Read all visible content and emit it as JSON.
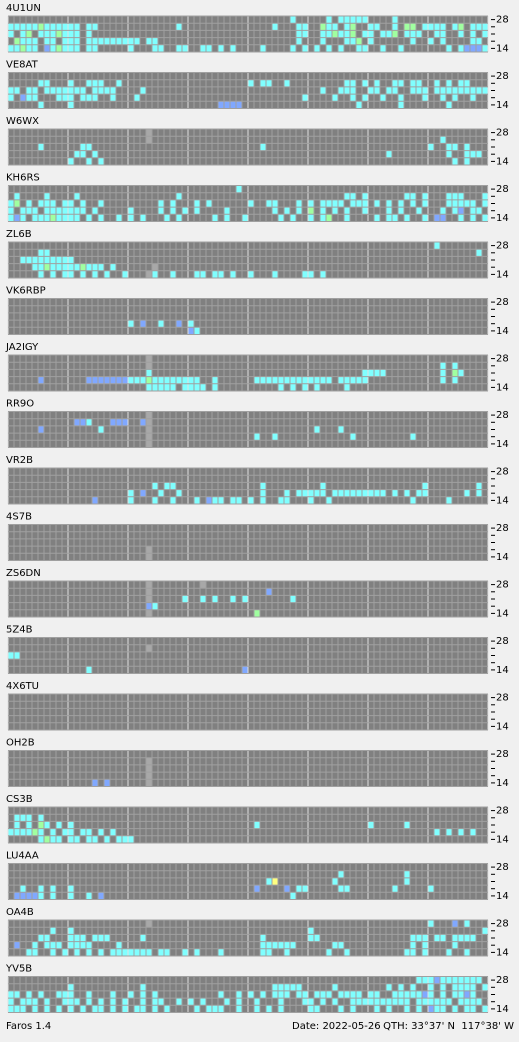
{
  "panels": [
    {
      "station": "4U1UN",
      "rows": [
        "...............................................c.....c.ccccc....c.................",
        "cccccgcccccc.cc.............c...............c...cc..gcc.cg..cc..c.gg.cccc.cg.ccc",
        "c.cg.cccgccc.c..................................cc..ccgccg.cc.ccg.ccc..cc..c.c.c.ccc",
        ".gccc.cc.ccc.ccccccccc.cc.......................c...c...ccg.c......c..c.c....cc..ccc.c",
        "ccgcc.bcgccc.cc.....c...cc..cc..cc.c.c....c....c.c.c.c.c..cc..c..c.......c.cbbbc"
      ]
    },
    {
      "station": "VE8AT",
      "rows": [
        "................................................................................",
        ".....cc...c..ccc..c.....................c.cc..c.........cc.c.c..cc.cc..c.c.cc.",
        "cc.cc.ccccccc.cccc....c.............................c..ccc..cc.cc..ccc.cccccccccc.cc.cc.c",
        "c.bcc...ccc.ccc..c...c...........................c....c..c.c..c..c...c..c.c..c...c..c.",
        ".....c....c........................bbbb...................c......c.......c........."
      ]
    },
    {
      "station": "W6WX",
      "rows": [
        ".......................k........................................................",
        ".......................k................................................c.......",
        ".....c......cc............................c...........................c..cc.c...",
        "...........cc.c................................................c.........c..ccc..",
        "..........c..c.c..........................................................c.c..."
      ]
    },
    {
      "station": "KH6RS",
      "rows": [
        "......................................c.........................................c.......",
        ".c....c....c................c...........................cc.c......cc.c...ccc...ccc...",
        "cg.c.ccc.cc.c..c.........c.c...c.c......c..cc...c.c.cccc.ccc.c.c.c.c.c...ccccc.c",
        "c.ccc.ccccccc.c.....c....c.c.c.c....c.......c.c.c.g.c.c.c..c...c.c..c...c.cb.cc.",
        "cbc.cccgcccc.c.c..c.c.c...c.c.....c.c..c.....c.c..c.cg..c....c.cc.c..c.bb..c.c.c"
      ]
    },
    {
      "station": "ZL6B",
      "rows": [
        ".......................................................................c........",
        ".....cc.......................................................................c.c...c...",
        "..ccccccccc.....................................................................",
        "....ccgcccccgccc.c......k.......................................................",
        ".....c.c.cc.c.c.c..c...kc..c...cc.cc.c..c...c....cc.c..........................."
      ]
    },
    {
      "station": "VK6RBP",
      "rows": [
        "................................................................................",
        "................................................................................",
        "................................................................................",
        "....................c.b..c..b.c.................................................",
        "..............................bc................................................"
      ]
    },
    {
      "station": "JA2IGY",
      "rows": [
        ".......................k........................................................",
        ".......................k................................................c.c.....",
        ".......................c...................................cccc.........c.gc......",
        ".....b.......bbbbbbbcccgcccccccc..c......ccccccccccccc.ccccc............c.c.....",
        ".......................ccccc.cccc.c..........c.c.c.c....c......................."
      ]
    },
    {
      "station": "RR9O",
      "rows": [
        ".......................k........................................................",
        "...........bbc...bbb..bk........................................................",
        ".....b.........c.......k...........................c...c........................",
        ".......................k.................c..c............c.........c............",
        ".......................k........................................................"
      ]
    },
    {
      "station": "VR2B",
      "rows": [
        "................................................................................",
        "................................................................................",
        "........................c.cc..............c.........c................c........c..",
        "....................c.b..c..c.............c...c.ccccc.ccccccccc.c.c.cc......c.c..",
        "..............b.....c...c..c...c.bcc.cc.c.c..cc...c..c.............c.....c......"
      ]
    },
    {
      "station": "4S7B",
      "rows": [
        "................................................................................",
        "................................................................................",
        "................................................................................",
        ".......................k........................................................",
        ".......................k........................................................"
      ]
    },
    {
      "station": "ZS6DN",
      "rows": [
        ".......................k........k...............................................",
        ".......................k...................b....................................",
        ".......................k.....c..c.c..c.c.......c.................................",
        ".......................bc.......................................................",
        ".......................k.................g......................................"
      ]
    },
    {
      "station": "5Z4B",
      "rows": [
        "................................................................................",
        ".......................k........................................................",
        "cc..............................................................................",
        "................................................................................",
        ".............c.........................b........................................"
      ]
    },
    {
      "station": "4X6TU",
      "rows": [
        "................................................................................",
        "................................................................................",
        "................................................................................",
        "................................................................................",
        "................................................................................"
      ]
    },
    {
      "station": "OH2B",
      "rows": [
        "................................................................................",
        ".......................k........................................................",
        ".......................k........................................................",
        ".......................k........................................................",
        "..............b.b......k........................................................"
      ]
    },
    {
      "station": "CS3B",
      "rows": [
        "................................................................................",
        ".ccc.c..........................................................................c......",
        ".c.c.gc.c.c..............................c..................c.....c............",
        "ccccgc.c.cc.cc.c.c.....................................................c.c.c.c",
        ".....cgcc.cc.cc.c.ccc..........................................................."
      ]
    },
    {
      "station": "LU4AA",
      "rows": [
        "................................................................................",
        ".......................................................c..........c........",
        "...........................................cy.........c...........c........",
        "..c..c.c..c..............................b....b.cc.....cc.......c.....c.........",
        ".bbbbc.c..c..c.b...............................c................................"
      ]
    },
    {
      "station": "OA4B",
      "rows": [
        ".......................k..............................................c...b.c......",
        ".......c..c.......................................c............................ccc.cc.c",
        ".....cc...ccc.ccc.....c...................c.......cc...............ccc.cc.cccc.",
        ".b..c.ccc.cccc....c.......................cccccc......cc...........c.c....c",
        "...cc..c.c.c.c.c.ccccccc.cc..c.c...c......cc..c......c..c.........cc.c...c..c..."
      ]
    },
    {
      "station": "YV5B",
      "rows": [
        "....................................................................cccbccccccc..cc.cc",
        "..........c...........c.....................ccccc.....c........c.c.c..c.c.cccc.cc.",
        "cc.c.c..ccc..c...c..c.c.c..........c..c.c.c.ccc.cc.ccc.cccc.cc..cccccbc.c.ccbc",
        "c.ccc.c..ccc.c.c.c.c..c.cc..c.c.c...c.c..c...c...cc.c.c..cccccccccc.cccccc.cccc.",
        "ccc.c.c.c.c.c.cc.c.c.cc.c.c....c.ccc..c..c.c.c....cc...c.c...c.c..c.c.bcc.c.cc.c"
      ]
    }
  ],
  "band_labels": {
    "top": "28",
    "bottom": "14"
  },
  "palette": {
    "c": "#80ffff",
    "g": "#a0ffa0",
    "b": "#80a8ff",
    "k": "#a8a8a8",
    "y": "#ffff80"
  },
  "footer": {
    "app": "Faros 1.4",
    "date": "Date: 2022-05-26",
    "qth": "QTH: 33°37' N  117°38' W"
  }
}
